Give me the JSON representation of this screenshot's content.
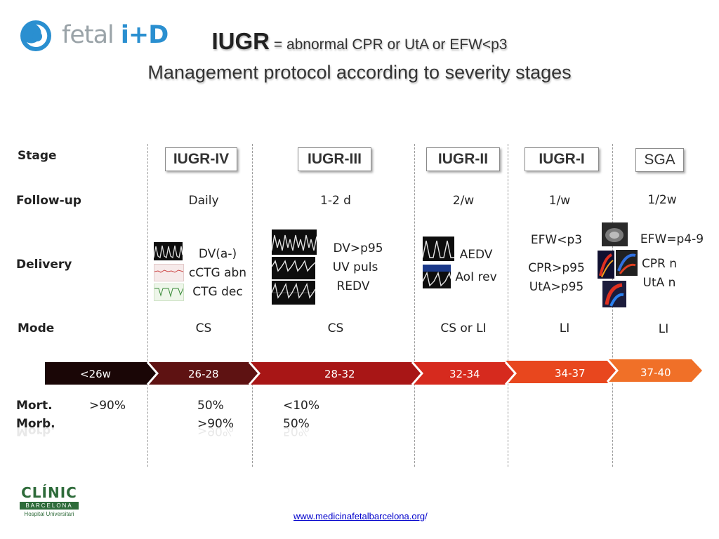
{
  "header": {
    "logo_word": "fetal",
    "logo_id": "i+D",
    "title_bold": "IUGR",
    "title_rest": " = abnormal CPR or UtA or EFW<p3",
    "subtitle": "Management protocol according to severity stages"
  },
  "rows": {
    "stage": "Stage",
    "followup": "Follow-up",
    "delivery": "Delivery",
    "mode": "Mode",
    "mort": "Mort.",
    "morb": "Morb."
  },
  "columns": [
    {
      "stage": "IUGR-IV",
      "followup": "Daily",
      "delivery": [
        "DV(a-)",
        "cCTG abn",
        "CTG dec"
      ],
      "mode": "CS",
      "ga": "<26w"
    },
    {
      "stage": "IUGR-III",
      "followup": "1-2 d",
      "delivery": [
        "DV>p95",
        "UV puls",
        "REDV"
      ],
      "mode": "CS",
      "ga": "26-28"
    },
    {
      "stage": "IUGR-II",
      "followup": "2/w",
      "delivery": [
        "AEDV",
        "AoI rev"
      ],
      "mode": "CS or LI",
      "ga": "28-32"
    },
    {
      "stage": "IUGR-I",
      "followup": "1/w",
      "delivery": [
        "EFW<p3",
        "CPR>p95",
        "UtA>p95"
      ],
      "mode": "LI",
      "ga": "32-34"
    },
    {
      "stage": "SGA",
      "followup": "1/2w",
      "delivery": [
        "EFW=p4-9",
        "CPR n",
        "UtA n"
      ],
      "mode": "LI",
      "ga": "34-37"
    }
  ],
  "timeline": {
    "segments": [
      "<26w",
      "26-28",
      "28-32",
      "32-34",
      "34-37",
      "37-40"
    ],
    "colors": [
      "#1a0606",
      "#5e1212",
      "#a81616",
      "#d62a1e",
      "#e8471e",
      "#f07028"
    ]
  },
  "outcomes": {
    "mort": [
      ">90%",
      "50%",
      "<10%"
    ],
    "morb": [
      "",
      ">90%",
      "50%"
    ]
  },
  "footer": {
    "link_text": "www.medicinafetalbarcelona.org",
    "link_tail": "/",
    "clinic_name": "CLÍNIC",
    "clinic_city": "BARCELONA",
    "clinic_sub": "Hospital Universitari"
  },
  "colors": {
    "accent_blue": "#2a8fd0",
    "link": "#0000cc",
    "clinic_green": "#2e6b3a"
  }
}
